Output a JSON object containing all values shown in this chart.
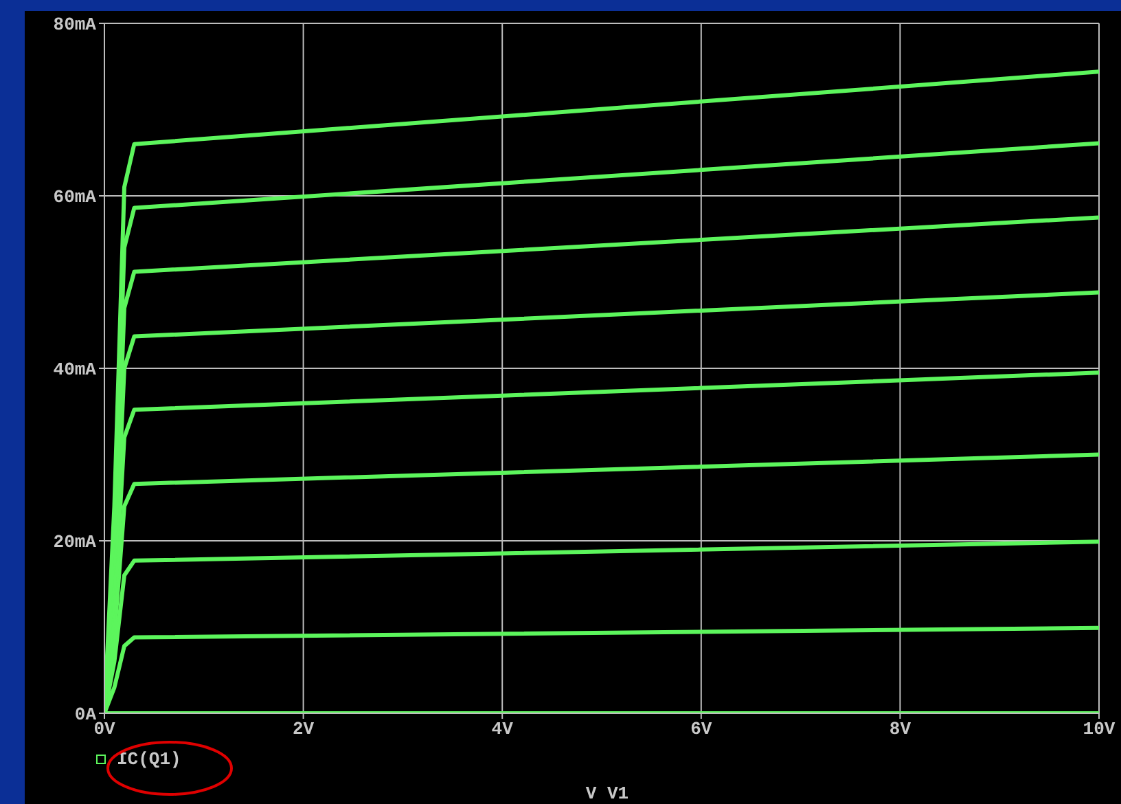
{
  "chart_data": {
    "type": "line",
    "xlabel": "V V1",
    "x": [
      0,
      0.1,
      0.2,
      0.3,
      10
    ],
    "series": [
      {
        "color": "#5cf55c",
        "values": [
          0,
          0,
          0,
          0,
          0
        ]
      },
      {
        "color": "#5cf55c",
        "values": [
          0,
          3,
          7.8,
          8.8,
          9.9
        ]
      },
      {
        "color": "#5cf55c",
        "values": [
          0,
          6,
          16,
          17.7,
          19.9
        ]
      },
      {
        "color": "#5cf55c",
        "values": [
          0,
          9,
          24,
          26.6,
          30
        ]
      },
      {
        "color": "#5cf55c",
        "values": [
          0,
          12,
          32,
          35.2,
          39.5
        ]
      },
      {
        "color": "#5cf55c",
        "values": [
          0,
          15,
          40,
          43.7,
          48.8
        ]
      },
      {
        "color": "#5cf55c",
        "values": [
          0,
          18,
          47,
          51.2,
          57.5
        ]
      },
      {
        "color": "#5cf55c",
        "values": [
          0,
          21,
          54,
          58.6,
          66.1
        ]
      },
      {
        "name": "IC(Q1)",
        "color": "#5cf55c",
        "values": [
          0,
          24,
          61,
          66,
          74.4
        ]
      }
    ],
    "xlim": [
      0,
      10
    ],
    "xticks": [
      {
        "value": 0,
        "label": "0V"
      },
      {
        "value": 2,
        "label": "2V"
      },
      {
        "value": 4,
        "label": "4V"
      },
      {
        "value": 6,
        "label": "6V"
      },
      {
        "value": 8,
        "label": "8V"
      },
      {
        "value": 10,
        "label": "10V"
      }
    ],
    "ylim": [
      0,
      80
    ],
    "yticks": [
      {
        "value": 0,
        "label": "0A"
      },
      {
        "value": 20,
        "label": "20mA"
      },
      {
        "value": 40,
        "label": "40mA"
      },
      {
        "value": 60,
        "label": "60mA"
      },
      {
        "value": 80,
        "label": "80mA"
      }
    ],
    "grid": true,
    "legend": "bottom left",
    "line_style": "solid"
  }
}
